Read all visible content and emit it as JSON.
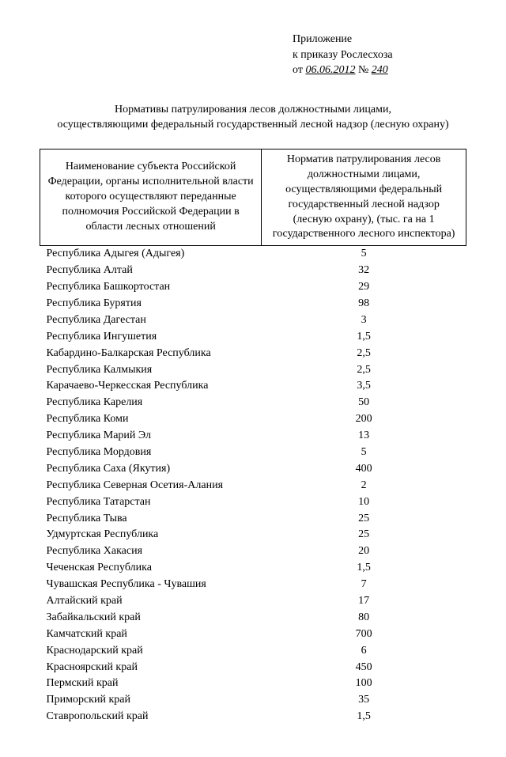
{
  "header": {
    "line1": "Приложение",
    "line2": "к приказу Рослесхоза",
    "line3_prefix": "от ",
    "date": "06.06.2012",
    "num_label": " № ",
    "num": "240"
  },
  "title": {
    "line1": "Нормативы патрулирования лесов должностными лицами,",
    "line2": "осуществляющими федеральный государственный лесной надзор (лесную охрану)"
  },
  "table": {
    "col1_header": "Наименование субъекта Российской Федерации, органы исполнительной власти которого осуществляют переданные полномочия Российской Федерации в области лесных отношений",
    "col2_header": "Норматив патрулирования лесов должностными лицами, осуществляющими федеральный государственный лесной надзор (лесную охрану), (тыс. га на 1 государственного лесного инспектора)",
    "rows": [
      {
        "name": "Республика Адыгея (Адыгея)",
        "value": "5"
      },
      {
        "name": "Республика Алтай",
        "value": "32"
      },
      {
        "name": "Республика Башкортостан",
        "value": "29"
      },
      {
        "name": "Республика Бурятия",
        "value": "98"
      },
      {
        "name": "Республика Дагестан",
        "value": "3"
      },
      {
        "name": "Республика Ингушетия",
        "value": "1,5"
      },
      {
        "name": "Кабардино-Балкарская Республика",
        "value": "2,5"
      },
      {
        "name": "Республика Калмыкия",
        "value": "2,5"
      },
      {
        "name": "Карачаево-Черкесская Республика",
        "value": "3,5"
      },
      {
        "name": "Республика Карелия",
        "value": "50"
      },
      {
        "name": "Республика Коми",
        "value": "200"
      },
      {
        "name": "Республика Марий Эл",
        "value": "13"
      },
      {
        "name": "Республика Мордовия",
        "value": "5"
      },
      {
        "name": "Республика Саха (Якутия)",
        "value": "400"
      },
      {
        "name": "Республика Северная Осетия-Алания",
        "value": "2"
      },
      {
        "name": "Республика Татарстан",
        "value": "10"
      },
      {
        "name": "Республика Тыва",
        "value": "25"
      },
      {
        "name": "Удмуртская Республика",
        "value": "25"
      },
      {
        "name": "Республика Хакасия",
        "value": "20"
      },
      {
        "name": "Чеченская Республика",
        "value": "1,5"
      },
      {
        "name": "Чувашская Республика - Чувашия",
        "value": "7"
      },
      {
        "name": "Алтайский край",
        "value": "17"
      },
      {
        "name": "Забайкальский край",
        "value": "80"
      },
      {
        "name": "Камчатский край",
        "value": "700"
      },
      {
        "name": "Краснодарский край",
        "value": "6"
      },
      {
        "name": "Красноярский край",
        "value": "450"
      },
      {
        "name": "Пермский край",
        "value": "100"
      },
      {
        "name": "Приморский край",
        "value": "35"
      },
      {
        "name": "Ставропольский край",
        "value": "1,5"
      }
    ]
  }
}
